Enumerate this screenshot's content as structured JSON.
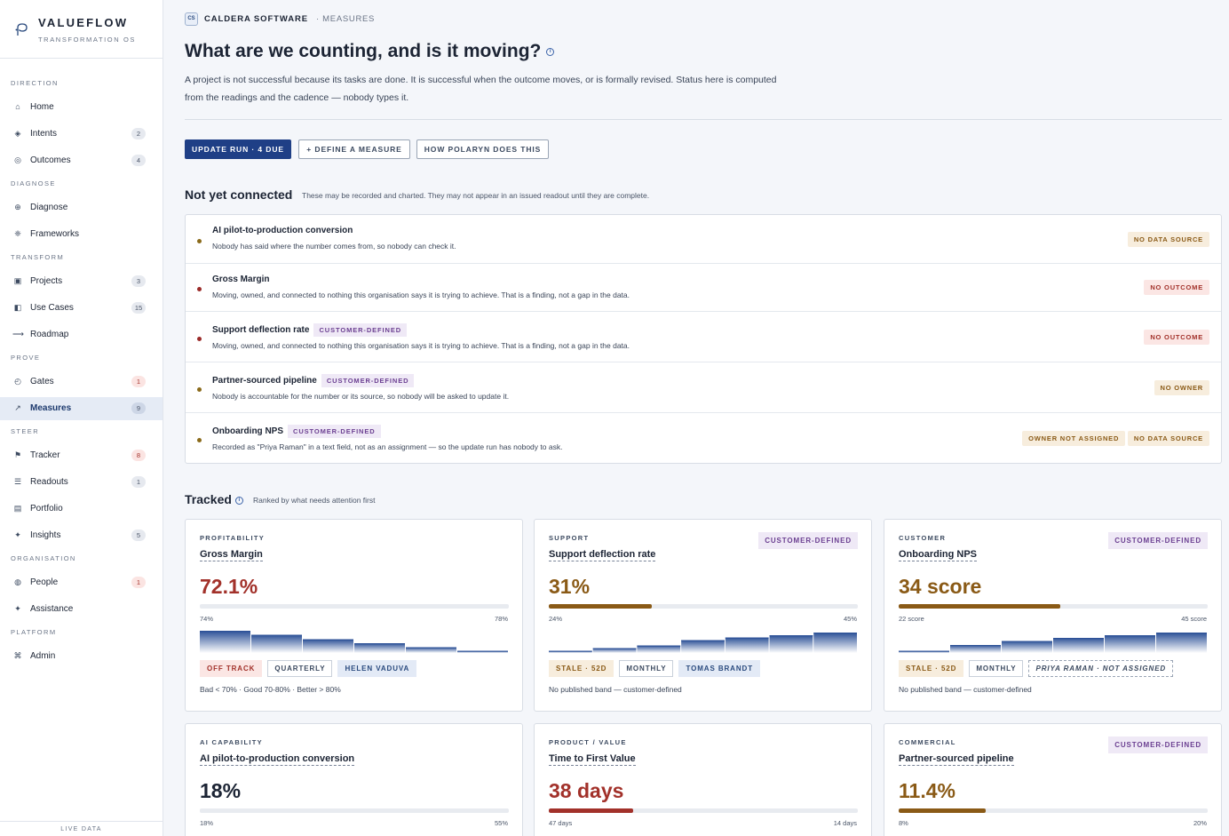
{
  "brand": {
    "name": "VALUEFLOW",
    "sub": "TRANSFORMATION OS"
  },
  "sidebar": {
    "sections": [
      {
        "title": "DIRECTION",
        "items": [
          {
            "label": "Home",
            "icon": "home-icon",
            "glyph": "⌂",
            "count": ""
          },
          {
            "label": "Intents",
            "icon": "intents-icon",
            "glyph": "◈",
            "count": "2"
          },
          {
            "label": "Outcomes",
            "icon": "outcomes-icon",
            "glyph": "◎",
            "count": "4"
          }
        ]
      },
      {
        "title": "DIAGNOSE",
        "items": [
          {
            "label": "Diagnose",
            "icon": "diagnose-icon",
            "glyph": "⊕",
            "count": ""
          },
          {
            "label": "Frameworks",
            "icon": "frameworks-icon",
            "glyph": "❈",
            "count": ""
          }
        ]
      },
      {
        "title": "TRANSFORM",
        "items": [
          {
            "label": "Projects",
            "icon": "projects-icon",
            "glyph": "▣",
            "count": "3"
          },
          {
            "label": "Use Cases",
            "icon": "use-cases-icon",
            "glyph": "◧",
            "count": "15"
          },
          {
            "label": "Roadmap",
            "icon": "roadmap-icon",
            "glyph": "⟶",
            "count": ""
          }
        ]
      },
      {
        "title": "PROVE",
        "items": [
          {
            "label": "Gates",
            "icon": "gates-icon",
            "glyph": "◴",
            "count": "1",
            "warn": true
          },
          {
            "label": "Measures",
            "icon": "measures-icon",
            "glyph": "↗",
            "count": "9",
            "active": true
          }
        ]
      },
      {
        "title": "STEER",
        "items": [
          {
            "label": "Tracker",
            "icon": "flag-icon",
            "glyph": "⚑",
            "count": "8",
            "warn": true
          },
          {
            "label": "Readouts",
            "icon": "readouts-icon",
            "glyph": "☰",
            "count": "1"
          },
          {
            "label": "Portfolio",
            "icon": "portfolio-icon",
            "glyph": "▤",
            "count": ""
          },
          {
            "label": "Insights",
            "icon": "insights-icon",
            "glyph": "✦",
            "count": "5"
          }
        ]
      },
      {
        "title": "ORGANISATION",
        "items": [
          {
            "label": "People",
            "icon": "people-icon",
            "glyph": "◍",
            "count": "1",
            "warn": true
          },
          {
            "label": "Assistance",
            "icon": "assistance-icon",
            "glyph": "✦",
            "count": ""
          }
        ]
      },
      {
        "title": "PLATFORM",
        "items": [
          {
            "label": "Admin",
            "icon": "admin-icon",
            "glyph": "⌘",
            "count": ""
          }
        ]
      }
    ],
    "footer": "LIVE DATA"
  },
  "breadcrumb": {
    "org_badge": "CS",
    "org": "CALDERA SOFTWARE",
    "page": "· MEASURES"
  },
  "header": {
    "title": "What are we counting, and is it moving?",
    "description": "A project is not successful because its tasks are done. It is successful when the outcome moves, or is formally revised. Status here is computed from the readings and the cadence — nobody types it."
  },
  "actions": {
    "update_run": "UPDATE RUN · 4 DUE",
    "define_measure": "+ DEFINE A MEASURE",
    "how": "HOW POLARYN DOES THIS"
  },
  "not_connected": {
    "title": "Not yet connected",
    "subtitle": "These may be recorded and charted. They may not appear in an issued readout until they are complete.",
    "rows": [
      {
        "name": "AI pilot-to-production conversion",
        "tag": "",
        "desc": "Nobody has said where the number comes from, so nobody can check it.",
        "flags": [
          {
            "label": "NO DATA SOURCE",
            "tone": "amber"
          }
        ],
        "dot": "#8a6a1a"
      },
      {
        "name": "Gross Margin",
        "tag": "",
        "desc": "Moving, owned, and connected to nothing this organisation says it is trying to achieve. That is a finding, not a gap in the data.",
        "flags": [
          {
            "label": "NO OUTCOME",
            "tone": "red"
          }
        ],
        "dot": "#9a2a28"
      },
      {
        "name": "Support deflection rate",
        "tag": "CUSTOMER-DEFINED",
        "desc": "Moving, owned, and connected to nothing this organisation says it is trying to achieve. That is a finding, not a gap in the data.",
        "flags": [
          {
            "label": "NO OUTCOME",
            "tone": "red"
          }
        ],
        "dot": "#9a2a28"
      },
      {
        "name": "Partner-sourced pipeline",
        "tag": "CUSTOMER-DEFINED",
        "desc": "Nobody is accountable for the number or its source, so nobody will be asked to update it.",
        "flags": [
          {
            "label": "NO OWNER",
            "tone": "amber"
          }
        ],
        "dot": "#8a6a1a"
      },
      {
        "name": "Onboarding NPS",
        "tag": "CUSTOMER-DEFINED",
        "desc": "Recorded as \"Priya Raman\" in a text field, not as an assignment — so the update run has nobody to ask.",
        "flags": [
          {
            "label": "OWNER NOT ASSIGNED",
            "tone": "amber"
          },
          {
            "label": "NO DATA SOURCE",
            "tone": "amber"
          }
        ],
        "dot": "#8a6a1a"
      }
    ]
  },
  "tracked": {
    "title": "Tracked",
    "subtitle": "Ranked by what needs attention first",
    "cards": [
      {
        "category": "PROFITABILITY",
        "name": "Gross Margin",
        "customer_defined": "",
        "value": "72.1%",
        "value_color": "#a2312a",
        "fill_color": "#a2312a",
        "progress": 0,
        "range_low": "74%",
        "range_high": "78%",
        "spark": [
          1.0,
          0.82,
          0.62,
          0.44,
          0.26,
          0.1
        ],
        "chips": [
          {
            "label": "OFF TRACK",
            "tone": "red"
          },
          {
            "label": "QUARTERLY",
            "tone": "plain"
          },
          {
            "label": "HELEN VADUVA",
            "tone": "person"
          }
        ],
        "note": "Bad < 70% · Good 70-80% · Better > 80%"
      },
      {
        "category": "SUPPORT",
        "name": "Support deflection rate",
        "customer_defined": "CUSTOMER-DEFINED",
        "value": "31%",
        "value_color": "#8a5a16",
        "fill_color": "#8a5a16",
        "progress": 0.333,
        "range_low": "24%",
        "range_high": "45%",
        "spark": [
          0.1,
          0.22,
          0.34,
          0.58,
          0.7,
          0.8,
          0.92
        ],
        "chips": [
          {
            "label": "STALE · 52D",
            "tone": "amber"
          },
          {
            "label": "MONTHLY",
            "tone": "plain"
          },
          {
            "label": "TOMAS BRANDT",
            "tone": "person"
          }
        ],
        "note": "No published band — customer-defined"
      },
      {
        "category": "CUSTOMER",
        "name": "Onboarding NPS",
        "customer_defined": "CUSTOMER-DEFINED",
        "value": "34 score",
        "value_color": "#8a5a16",
        "fill_color": "#8a5a16",
        "progress": 0.522,
        "range_low": "22 score",
        "range_high": "45 score",
        "spark": [
          0.1,
          0.36,
          0.54,
          0.68,
          0.8,
          0.92
        ],
        "chips": [
          {
            "label": "STALE · 52D",
            "tone": "amber"
          },
          {
            "label": "MONTHLY",
            "tone": "plain"
          },
          {
            "label": "PRIYA RAMAN · NOT ASSIGNED",
            "tone": "dashed"
          }
        ],
        "note": "No published band — customer-defined"
      },
      {
        "category": "AI CAPABILITY",
        "name": "AI pilot-to-production conversion",
        "customer_defined": "",
        "value": "18%",
        "value_color": "#1c2434",
        "fill_color": "#1c2434",
        "progress": 0,
        "range_low": "18%",
        "range_high": "55%",
        "spark": [],
        "chips": [],
        "note": ""
      },
      {
        "category": "PRODUCT / VALUE",
        "name": "Time to First Value",
        "customer_defined": "",
        "value": "38 days",
        "value_color": "#a2312a",
        "fill_color": "#a2312a",
        "progress": 0.273,
        "range_low": "47 days",
        "range_high": "14 days",
        "spark": [],
        "chips": [],
        "note": ""
      },
      {
        "category": "COMMERCIAL",
        "name": "Partner-sourced pipeline",
        "customer_defined": "CUSTOMER-DEFINED",
        "value": "11.4%",
        "value_color": "#8a5a16",
        "fill_color": "#8a5a16",
        "progress": 0.283,
        "range_low": "8%",
        "range_high": "20%",
        "spark": [],
        "chips": [],
        "note": ""
      }
    ]
  },
  "colors": {
    "accent": "#1f3f86",
    "warn": "#a2312a",
    "amber": "#8a5a16",
    "purple": "#6b3f91"
  }
}
